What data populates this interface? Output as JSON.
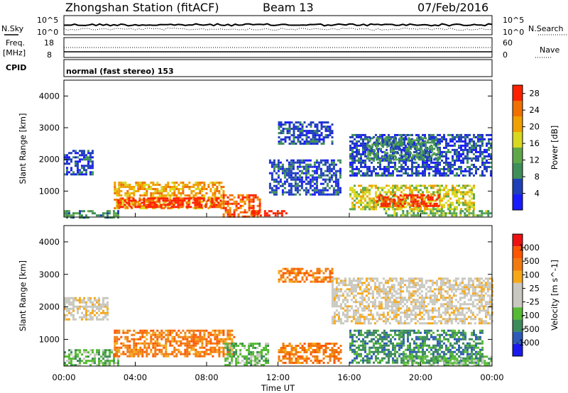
{
  "header": {
    "station": "Zhongshan Station (fitACF)",
    "beam": "Beam 13",
    "date": "07/Feb/2016"
  },
  "strips": {
    "nsky": {
      "label": "N.Sky",
      "ticks": [
        "10^5",
        "10^0"
      ]
    },
    "nsearch": {
      "label": "N.Search",
      "ticks": [
        "10^5",
        "10^0"
      ]
    },
    "freq": {
      "label_line1": "Freq.",
      "label_line2": "[MHz]",
      "ticks": [
        "18",
        "8"
      ]
    },
    "nave": {
      "label": "Nave",
      "ticks": [
        "60",
        "0"
      ]
    },
    "cpid": {
      "label": "CPID",
      "text": "normal (fast stereo) 153"
    }
  },
  "colors": {
    "power": [
      "#1a1aff",
      "#2040b8",
      "#3e8f5a",
      "#5fa84a",
      "#d8d820",
      "#f0a000",
      "#f07000",
      "#ff2000"
    ],
    "velocity": [
      "#ee1111",
      "#ff5500",
      "#f07a10",
      "#f6a818",
      "#c8c8c0",
      "#c8c8c0",
      "#55bb33",
      "#3d8a5a",
      "#2d5ab8",
      "#1a1aee"
    ]
  },
  "chart_data": [
    {
      "type": "heatmap",
      "title": "Power",
      "ylabel": "Slant Range [km]",
      "xlabel": "Time UT",
      "ylim": [
        180,
        4500
      ],
      "yticks": [
        "1000",
        "2000",
        "3000",
        "4000"
      ],
      "xticks": [
        "00:00",
        "04:00",
        "08:00",
        "12:00",
        "16:00",
        "20:00",
        "00:00"
      ],
      "colorbar": {
        "label": "Power [dB]",
        "ticks": [
          "4",
          "8",
          "12",
          "16",
          "20",
          "24",
          "28"
        ],
        "range": [
          0,
          30
        ]
      },
      "regions": [
        {
          "t": [
            0.0,
            1.6
          ],
          "r": [
            1550,
            2300
          ],
          "level": 1
        },
        {
          "t": [
            0.0,
            3.0
          ],
          "r": [
            180,
            400
          ],
          "level": 2
        },
        {
          "t": [
            2.8,
            8.9
          ],
          "r": [
            450,
            1300
          ],
          "level": 5
        },
        {
          "t": [
            3.0,
            8.8
          ],
          "r": [
            500,
            800
          ],
          "level": 7
        },
        {
          "t": [
            8.9,
            11.0
          ],
          "r": [
            200,
            900
          ],
          "level": 6
        },
        {
          "t": [
            10.5,
            12.5
          ],
          "r": [
            200,
            400
          ],
          "level": 7
        },
        {
          "t": [
            11.5,
            15.5
          ],
          "r": [
            900,
            2000
          ],
          "level": 1
        },
        {
          "t": [
            12.0,
            15.0
          ],
          "r": [
            2500,
            3200
          ],
          "level": 1
        },
        {
          "t": [
            16.0,
            23.0
          ],
          "r": [
            400,
            1200
          ],
          "level": 4
        },
        {
          "t": [
            17.5,
            21.0
          ],
          "r": [
            500,
            900
          ],
          "level": 7
        },
        {
          "t": [
            16.0,
            24.0
          ],
          "r": [
            1500,
            2800
          ],
          "level": 1
        },
        {
          "t": [
            17.0,
            21.0
          ],
          "r": [
            2000,
            2700
          ],
          "level": 2
        },
        {
          "t": [
            18.0,
            24.0
          ],
          "r": [
            200,
            400
          ],
          "level": 3
        }
      ]
    },
    {
      "type": "heatmap",
      "title": "Velocity",
      "ylabel": "Slant Range [km]",
      "xlabel": "Time UT",
      "ylim": [
        180,
        4500
      ],
      "yticks": [
        "1000",
        "2000",
        "3000",
        "4000"
      ],
      "xticks": [
        "00:00",
        "04:00",
        "08:00",
        "12:00",
        "16:00",
        "20:00",
        "00:00"
      ],
      "colorbar": {
        "label": "Velocity [m s^-1]",
        "ticks": [
          "1000",
          "500",
          "100",
          "25",
          "-25",
          "-100",
          "-500",
          "-1000"
        ]
      },
      "regions": [
        {
          "t": [
            0.0,
            2.5
          ],
          "r": [
            1600,
            2300
          ],
          "level": 4
        },
        {
          "t": [
            0.0,
            3.0
          ],
          "r": [
            200,
            700
          ],
          "level": 6
        },
        {
          "t": [
            2.8,
            9.5
          ],
          "r": [
            450,
            1300
          ],
          "level": 2
        },
        {
          "t": [
            9.0,
            11.5
          ],
          "r": [
            200,
            900
          ],
          "level": 6
        },
        {
          "t": [
            12.0,
            15.5
          ],
          "r": [
            300,
            900
          ],
          "level": 2
        },
        {
          "t": [
            12.0,
            15.0
          ],
          "r": [
            2800,
            3200
          ],
          "level": 2
        },
        {
          "t": [
            16.0,
            23.5
          ],
          "r": [
            300,
            1300
          ],
          "level": 7
        },
        {
          "t": [
            15.0,
            24.0
          ],
          "r": [
            1500,
            2900
          ],
          "level": 4
        },
        {
          "t": [
            19.0,
            24.0
          ],
          "r": [
            200,
            500
          ],
          "level": 6
        }
      ]
    }
  ]
}
